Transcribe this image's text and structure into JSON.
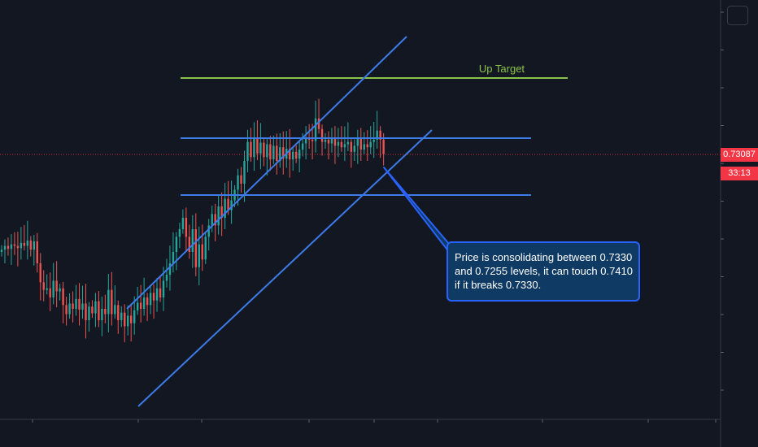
{
  "chart_data": {
    "type": "candlestick",
    "current_price": 0.73087,
    "price_label": "0.73087",
    "countdown": "33:13",
    "up_target_label": "Up Target",
    "annotation": [
      "Price is consolidating between 0.7330",
      "and 0.7255 levels, it can touch 0.7410",
      "if it breaks 0.7330."
    ],
    "levels": {
      "up_target": 0.741,
      "resistance": 0.733,
      "support": 0.7255
    },
    "colors": {
      "bull": "#26a69a",
      "bear": "#ef5350",
      "trendline": "#3d7be8",
      "target": "#8bc34a",
      "price_line": "#f23645",
      "background": "#131722"
    },
    "closes": [
      0.7183,
      0.7188,
      0.7184,
      0.719,
      0.7188,
      0.7185,
      0.7192,
      0.7188,
      0.7195,
      0.7183,
      0.7194,
      0.7165,
      0.714,
      0.713,
      0.7132,
      0.712,
      0.7142,
      0.7128,
      0.7132,
      0.711,
      0.7098,
      0.7112,
      0.7105,
      0.7118,
      0.7104,
      0.7112,
      0.709,
      0.7108,
      0.7099,
      0.7115,
      0.709,
      0.7105,
      0.7098,
      0.713,
      0.7098,
      0.711,
      0.709,
      0.71,
      0.7082,
      0.7096,
      0.7086,
      0.7103,
      0.7113,
      0.7105,
      0.712,
      0.711,
      0.7126,
      0.7116,
      0.7132,
      0.712,
      0.7142,
      0.715,
      0.7165,
      0.718,
      0.72,
      0.721,
      0.7225,
      0.72,
      0.718,
      0.721,
      0.716,
      0.719,
      0.717,
      0.72,
      0.7215,
      0.723,
      0.7215,
      0.724,
      0.7225,
      0.725,
      0.7235,
      0.7248,
      0.7262,
      0.7281,
      0.727,
      0.73,
      0.7325,
      0.7305,
      0.733,
      0.731,
      0.7324,
      0.7305,
      0.7322,
      0.7302,
      0.732,
      0.73,
      0.7318,
      0.7303,
      0.7316,
      0.7302,
      0.7312,
      0.7303,
      0.7315,
      0.7323,
      0.733,
      0.7328,
      0.7326,
      0.7356,
      0.7342,
      0.7325,
      0.7328,
      0.7323,
      0.733,
      0.732,
      0.7325,
      0.7318,
      0.7322,
      0.7325,
      0.7312,
      0.732,
      0.733,
      0.7315,
      0.7322,
      0.7318,
      0.7325,
      0.7328,
      0.734,
      0.7328,
      0.7309
    ]
  }
}
